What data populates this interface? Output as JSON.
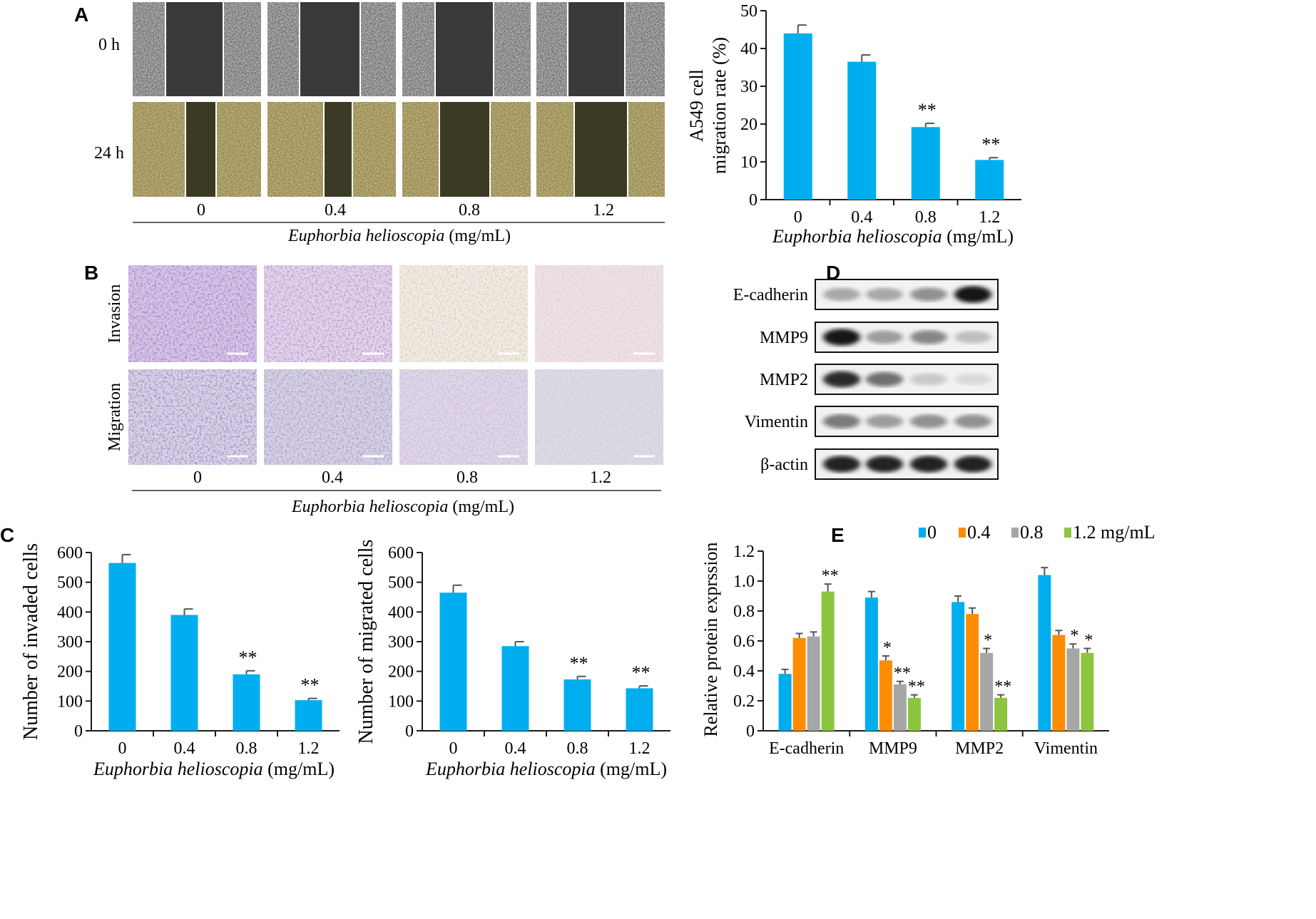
{
  "colors": {
    "bar": "#00AEEF",
    "series": [
      "#00AEEF",
      "#FF8C00",
      "#A6A6A6",
      "#8CC63F"
    ],
    "axis": "#1a1a1a"
  },
  "panels": {
    "A": {
      "letter": "A",
      "row_labels": [
        "0 h",
        "24 h"
      ],
      "dose_labels": [
        "0",
        "0.4",
        "0.8",
        "1.2"
      ],
      "axis_label_italic": "Euphorbia helioscopia",
      "axis_label_unit": " (mg/mL)"
    },
    "B": {
      "letter": "B",
      "row_labels": [
        "Invasion",
        "Migration"
      ],
      "dose_labels": [
        "0",
        "0.4",
        "0.8",
        "1.2"
      ],
      "axis_label_italic": "Euphorbia helioscopia",
      "axis_label_unit": " (mg/mL)"
    },
    "C": {
      "letter": "C"
    },
    "D": {
      "letter": "D",
      "proteins": [
        "E-cadherin",
        "MMP9",
        "MMP2",
        "Vimentin",
        "β-actin"
      ],
      "band_intensity": [
        [
          0.3,
          0.3,
          0.4,
          0.95
        ],
        [
          0.95,
          0.35,
          0.45,
          0.2
        ],
        [
          0.85,
          0.55,
          0.15,
          0.08
        ],
        [
          0.5,
          0.35,
          0.4,
          0.4
        ],
        [
          0.9,
          0.9,
          0.9,
          0.9
        ]
      ]
    },
    "E": {
      "letter": "E"
    }
  },
  "chart_data": [
    {
      "id": "A-chart",
      "type": "bar",
      "categories": [
        "0",
        "0.4",
        "0.8",
        "1.2"
      ],
      "values": [
        44,
        36.5,
        19.2,
        10.5
      ],
      "errors": [
        2.2,
        1.8,
        1.0,
        0.6
      ],
      "significance": [
        "",
        "",
        "**",
        "**"
      ],
      "ylabel_line1": "A549 cell",
      "ylabel_line2": "migration rate (%)",
      "xlabel_italic": "Euphorbia helioscopia",
      "xlabel_unit": " (mg/mL)",
      "ylim": [
        0,
        50
      ],
      "yticks": [
        "0",
        "10",
        "20",
        "30",
        "40",
        "50"
      ]
    },
    {
      "id": "C-left",
      "type": "bar",
      "categories": [
        "0",
        "0.4",
        "0.8",
        "1.2"
      ],
      "values": [
        565,
        390,
        190,
        103
      ],
      "errors": [
        28,
        20,
        12,
        6
      ],
      "significance": [
        "",
        "",
        "**",
        "**"
      ],
      "ylabel": "Number of invaded cells",
      "xlabel_italic": "Euphorbia helioscopia",
      "xlabel_unit": " (mg/mL)",
      "ylim": [
        0,
        600
      ],
      "yticks": [
        "0",
        "100",
        "200",
        "300",
        "400",
        "500",
        "600"
      ]
    },
    {
      "id": "C-right",
      "type": "bar",
      "categories": [
        "0",
        "0.4",
        "0.8",
        "1.2"
      ],
      "values": [
        465,
        285,
        173,
        143
      ],
      "errors": [
        25,
        15,
        10,
        8
      ],
      "significance": [
        "",
        "",
        "**",
        "**"
      ],
      "ylabel": "Number of migrated cells",
      "xlabel_italic": "Euphorbia helioscopia",
      "xlabel_unit": " (mg/mL)",
      "ylim": [
        0,
        600
      ],
      "yticks": [
        "0",
        "100",
        "200",
        "300",
        "400",
        "500",
        "600"
      ]
    },
    {
      "id": "E-chart",
      "type": "bar",
      "categories": [
        "E-cadherin",
        "MMP9",
        "MMP2",
        "Vimentin"
      ],
      "series": [
        {
          "name": "0",
          "values": [
            0.38,
            0.89,
            0.86,
            1.04
          ],
          "errors": [
            0.03,
            0.04,
            0.04,
            0.05
          ],
          "significance": [
            "",
            "",
            "",
            ""
          ]
        },
        {
          "name": "0.4",
          "values": [
            0.62,
            0.47,
            0.78,
            0.64
          ],
          "errors": [
            0.03,
            0.03,
            0.04,
            0.03
          ],
          "significance": [
            "",
            "*",
            "",
            ""
          ]
        },
        {
          "name": "0.8",
          "values": [
            0.63,
            0.31,
            0.52,
            0.55
          ],
          "errors": [
            0.03,
            0.02,
            0.03,
            0.03
          ],
          "significance": [
            "",
            "**",
            "*",
            "*"
          ]
        },
        {
          "name": "1.2 mg/mL",
          "values": [
            0.93,
            0.22,
            0.22,
            0.52
          ],
          "errors": [
            0.05,
            0.02,
            0.02,
            0.03
          ],
          "significance": [
            "**",
            "**",
            "**",
            "*"
          ]
        }
      ],
      "ylabel": "Relative protein exprssion",
      "ylim": [
        0,
        1.2
      ],
      "yticks": [
        "0",
        "0.2",
        "0.4",
        "0.6",
        "0.8",
        "1.0",
        "1.2"
      ],
      "legend_placement": "top-right"
    }
  ]
}
